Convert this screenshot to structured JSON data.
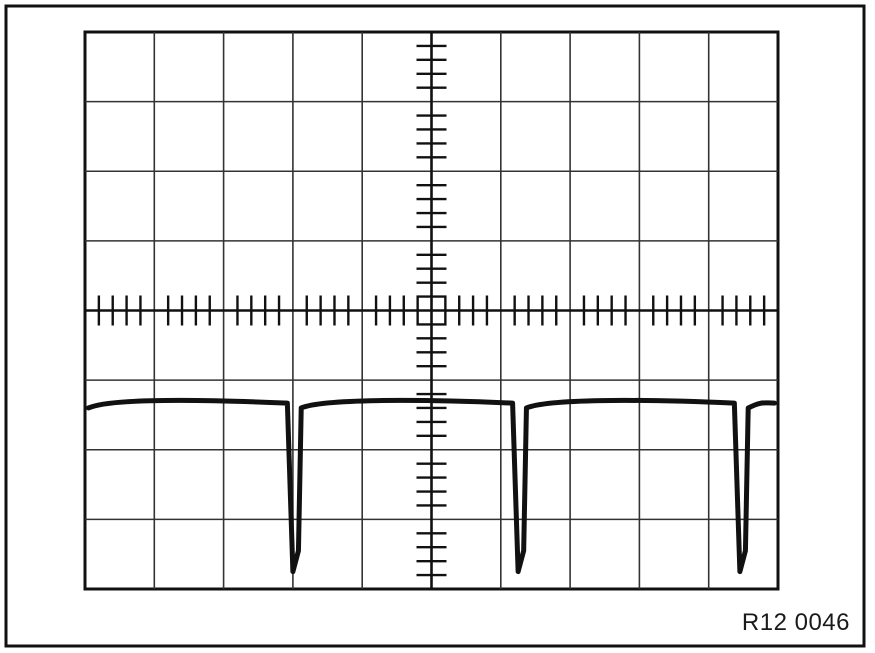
{
  "figure": {
    "reference": "R12 0046"
  },
  "colors": {
    "frame": "#111111",
    "grid": "#333333",
    "trace": "#111111",
    "background": "#ffffff"
  },
  "screen": {
    "divisions_x": 10,
    "divisions_y": 8,
    "subdivisions_per_division": 5,
    "grid": true
  },
  "signal": {
    "description_units": "divisions",
    "baseline_level_div": -1.45,
    "pulse_dip_level_div": -3.75,
    "pulse_positions_div": [
      -2.0,
      1.25,
      4.45
    ],
    "pulse_count": 3
  }
}
